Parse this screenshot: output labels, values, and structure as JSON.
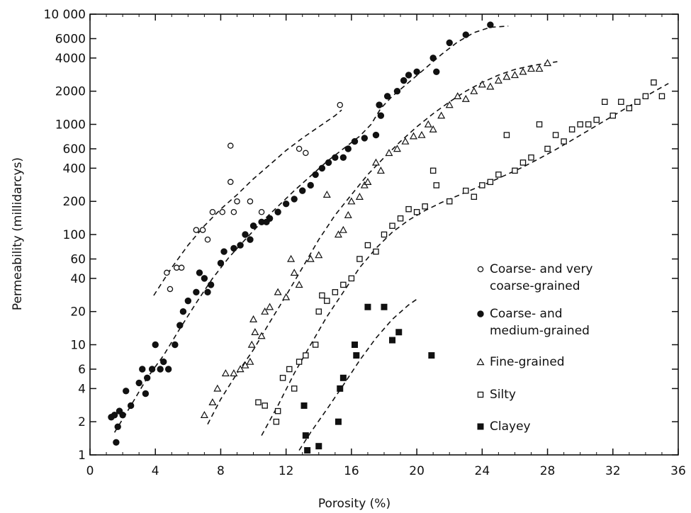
{
  "chart_data": {
    "type": "scatter",
    "title": "",
    "xlabel": "Porosity (%)",
    "ylabel": "Permeability (millidarcys)",
    "xlim": [
      0,
      36
    ],
    "ylim": [
      1,
      10000
    ],
    "y_scale": "log",
    "grid": false,
    "legend_position": "right",
    "x_ticks": [
      0,
      4,
      8,
      12,
      16,
      20,
      24,
      28,
      32,
      36
    ],
    "x_tick_labels": [
      "0",
      "4",
      "8",
      "12",
      "16",
      "20",
      "24",
      "28",
      "32",
      "36"
    ],
    "y_ticks": [
      1,
      2,
      4,
      6,
      10,
      20,
      40,
      60,
      100,
      200,
      400,
      600,
      1000,
      2000,
      4000,
      6000,
      10000
    ],
    "y_tick_labels": [
      "1",
      "2",
      "4",
      "6",
      "10",
      "20",
      "40",
      "60",
      "100",
      "200",
      "400",
      "600",
      "1000",
      "2000",
      "4000",
      "6000",
      "10 000"
    ],
    "series": [
      {
        "name": "Coarse- and very coarse-grained",
        "name_lines": [
          "Coarse- and very",
          "coarse-grained"
        ],
        "marker": "open-circle",
        "points": [
          [
            4.7,
            45
          ],
          [
            4.9,
            32
          ],
          [
            5.3,
            50
          ],
          [
            5.6,
            50
          ],
          [
            6.5,
            110
          ],
          [
            6.9,
            110
          ],
          [
            7.2,
            90
          ],
          [
            7.5,
            160
          ],
          [
            8.1,
            160
          ],
          [
            8.6,
            640
          ],
          [
            8.6,
            300
          ],
          [
            8.8,
            160
          ],
          [
            9.0,
            200
          ],
          [
            9.8,
            200
          ],
          [
            10.5,
            160
          ],
          [
            12.8,
            600
          ],
          [
            13.2,
            550
          ],
          [
            15.3,
            1500
          ]
        ],
        "fit_line": [
          [
            3.9,
            28
          ],
          [
            5,
            50
          ],
          [
            6,
            80
          ],
          [
            7,
            120
          ],
          [
            8,
            170
          ],
          [
            9,
            230
          ],
          [
            10,
            320
          ],
          [
            11,
            430
          ],
          [
            12,
            580
          ],
          [
            13,
            750
          ],
          [
            14,
            950
          ],
          [
            15,
            1200
          ],
          [
            15.4,
            1350
          ]
        ]
      },
      {
        "name": "Coarse- and medium-grained",
        "name_lines": [
          "Coarse- and",
          "medium-grained"
        ],
        "marker": "filled-circle",
        "points": [
          [
            1.3,
            2.2
          ],
          [
            1.5,
            2.3
          ],
          [
            1.6,
            1.3
          ],
          [
            1.7,
            1.8
          ],
          [
            1.8,
            2.5
          ],
          [
            2.0,
            2.3
          ],
          [
            2.2,
            3.8
          ],
          [
            2.5,
            2.8
          ],
          [
            3.0,
            4.5
          ],
          [
            3.2,
            6
          ],
          [
            3.4,
            3.6
          ],
          [
            3.5,
            5
          ],
          [
            3.8,
            6
          ],
          [
            4.0,
            10
          ],
          [
            4.3,
            6
          ],
          [
            4.5,
            7
          ],
          [
            4.8,
            6
          ],
          [
            5.2,
            10
          ],
          [
            5.5,
            15
          ],
          [
            5.7,
            20
          ],
          [
            6.0,
            25
          ],
          [
            6.5,
            30
          ],
          [
            6.7,
            45
          ],
          [
            7.0,
            40
          ],
          [
            7.2,
            30
          ],
          [
            7.4,
            35
          ],
          [
            8.0,
            55
          ],
          [
            8.2,
            70
          ],
          [
            8.8,
            75
          ],
          [
            9.2,
            80
          ],
          [
            9.5,
            100
          ],
          [
            9.8,
            90
          ],
          [
            10.0,
            120
          ],
          [
            10.5,
            130
          ],
          [
            10.8,
            130
          ],
          [
            11.0,
            140
          ],
          [
            11.5,
            160
          ],
          [
            12.0,
            190
          ],
          [
            12.5,
            210
          ],
          [
            13.0,
            250
          ],
          [
            13.5,
            280
          ],
          [
            13.8,
            350
          ],
          [
            14.2,
            400
          ],
          [
            14.6,
            450
          ],
          [
            15.0,
            500
          ],
          [
            15.5,
            500
          ],
          [
            15.8,
            600
          ],
          [
            16.2,
            700
          ],
          [
            16.8,
            750
          ],
          [
            17.5,
            800
          ],
          [
            17.7,
            1500
          ],
          [
            17.8,
            1200
          ],
          [
            18.2,
            1800
          ],
          [
            18.8,
            2000
          ],
          [
            19.2,
            2500
          ],
          [
            19.5,
            2800
          ],
          [
            20.0,
            3000
          ],
          [
            21.0,
            4000
          ],
          [
            21.2,
            3000
          ],
          [
            22.0,
            5500
          ],
          [
            23.0,
            6500
          ],
          [
            24.5,
            8000
          ]
        ],
        "fit_line": [
          [
            1.5,
            1.6
          ],
          [
            2.5,
            2.8
          ],
          [
            3.5,
            5
          ],
          [
            4.5,
            8
          ],
          [
            5.5,
            14
          ],
          [
            6.5,
            24
          ],
          [
            7.5,
            40
          ],
          [
            8.5,
            62
          ],
          [
            9.5,
            90
          ],
          [
            10.5,
            130
          ],
          [
            11.5,
            180
          ],
          [
            12.5,
            250
          ],
          [
            13.5,
            340
          ],
          [
            14.5,
            460
          ],
          [
            15.5,
            600
          ],
          [
            16.5,
            780
          ],
          [
            17.2,
            1000
          ],
          [
            17.8,
            1400
          ],
          [
            18.5,
            1800
          ],
          [
            19.5,
            2400
          ],
          [
            20.5,
            3200
          ],
          [
            21.5,
            4300
          ],
          [
            22.5,
            5600
          ],
          [
            23.5,
            6800
          ],
          [
            24.5,
            7600
          ],
          [
            25.6,
            7800
          ]
        ]
      },
      {
        "name": "Fine-grained",
        "marker": "open-triangle",
        "points": [
          [
            7.0,
            2.3
          ],
          [
            7.5,
            3
          ],
          [
            7.8,
            4
          ],
          [
            8.3,
            5.5
          ],
          [
            8.8,
            5.5
          ],
          [
            9.2,
            6
          ],
          [
            9.5,
            6.5
          ],
          [
            9.8,
            7
          ],
          [
            9.9,
            10
          ],
          [
            10.0,
            17
          ],
          [
            10.1,
            13
          ],
          [
            10.5,
            12
          ],
          [
            10.7,
            20
          ],
          [
            11.0,
            22
          ],
          [
            11.5,
            30
          ],
          [
            12.0,
            27
          ],
          [
            12.3,
            60
          ],
          [
            12.5,
            45
          ],
          [
            12.8,
            35
          ],
          [
            13.5,
            60
          ],
          [
            14.0,
            65
          ],
          [
            14.5,
            230
          ],
          [
            15.2,
            100
          ],
          [
            15.5,
            110
          ],
          [
            15.8,
            150
          ],
          [
            16.0,
            200
          ],
          [
            16.5,
            220
          ],
          [
            16.8,
            280
          ],
          [
            17.0,
            300
          ],
          [
            17.5,
            450
          ],
          [
            17.8,
            380
          ],
          [
            18.3,
            550
          ],
          [
            18.8,
            600
          ],
          [
            19.3,
            700
          ],
          [
            19.8,
            780
          ],
          [
            20.3,
            800
          ],
          [
            20.7,
            1000
          ],
          [
            21.0,
            900
          ],
          [
            21.5,
            1200
          ],
          [
            22.0,
            1500
          ],
          [
            22.5,
            1800
          ],
          [
            23.0,
            1700
          ],
          [
            23.5,
            2000
          ],
          [
            24.0,
            2300
          ],
          [
            24.5,
            2200
          ],
          [
            25.0,
            2500
          ],
          [
            25.5,
            2700
          ],
          [
            26.0,
            2800
          ],
          [
            26.5,
            3000
          ],
          [
            27.0,
            3200
          ],
          [
            27.5,
            3200
          ],
          [
            28.0,
            3600
          ]
        ],
        "fit_line": [
          [
            7.2,
            1.9
          ],
          [
            8,
            3.2
          ],
          [
            9,
            5.5
          ],
          [
            10,
            9
          ],
          [
            11,
            16
          ],
          [
            12,
            28
          ],
          [
            13,
            50
          ],
          [
            14,
            90
          ],
          [
            15,
            150
          ],
          [
            16,
            230
          ],
          [
            17,
            350
          ],
          [
            18,
            500
          ],
          [
            19,
            700
          ],
          [
            20,
            950
          ],
          [
            21,
            1250
          ],
          [
            22,
            1600
          ],
          [
            23,
            2000
          ],
          [
            24,
            2400
          ],
          [
            25,
            2800
          ],
          [
            26,
            3150
          ],
          [
            27,
            3400
          ],
          [
            28,
            3600
          ],
          [
            28.6,
            3700
          ]
        ]
      },
      {
        "name": "Silty",
        "marker": "open-square",
        "points": [
          [
            10.3,
            3
          ],
          [
            10.7,
            2.8
          ],
          [
            11.4,
            2
          ],
          [
            11.5,
            2.5
          ],
          [
            11.8,
            5
          ],
          [
            12.2,
            6
          ],
          [
            12.5,
            4
          ],
          [
            12.8,
            7
          ],
          [
            13.2,
            8
          ],
          [
            13.8,
            10
          ],
          [
            14.0,
            20
          ],
          [
            14.2,
            28
          ],
          [
            14.5,
            25
          ],
          [
            15.0,
            30
          ],
          [
            15.5,
            35
          ],
          [
            16.0,
            40
          ],
          [
            16.5,
            60
          ],
          [
            17.0,
            80
          ],
          [
            17.5,
            70
          ],
          [
            18.0,
            100
          ],
          [
            18.5,
            120
          ],
          [
            19.0,
            140
          ],
          [
            19.5,
            170
          ],
          [
            20.0,
            160
          ],
          [
            20.5,
            180
          ],
          [
            21.0,
            380
          ],
          [
            21.2,
            280
          ],
          [
            22.0,
            200
          ],
          [
            23.0,
            250
          ],
          [
            23.5,
            220
          ],
          [
            24.0,
            280
          ],
          [
            24.5,
            300
          ],
          [
            25.0,
            350
          ],
          [
            25.5,
            800
          ],
          [
            26.0,
            380
          ],
          [
            26.5,
            450
          ],
          [
            27.0,
            500
          ],
          [
            27.5,
            1000
          ],
          [
            28.0,
            600
          ],
          [
            28.5,
            800
          ],
          [
            29.0,
            700
          ],
          [
            29.5,
            900
          ],
          [
            30.0,
            1000
          ],
          [
            30.5,
            1000
          ],
          [
            31.0,
            1100
          ],
          [
            31.5,
            1600
          ],
          [
            32.0,
            1200
          ],
          [
            32.5,
            1600
          ],
          [
            33.0,
            1400
          ],
          [
            33.5,
            1600
          ],
          [
            34.0,
            1800
          ],
          [
            34.5,
            2400
          ],
          [
            35.0,
            1800
          ]
        ],
        "fit_line": [
          [
            10.5,
            1.5
          ],
          [
            11.5,
            2.8
          ],
          [
            12.5,
            5.5
          ],
          [
            13.5,
            10
          ],
          [
            14.5,
            18
          ],
          [
            15.5,
            30
          ],
          [
            16.5,
            50
          ],
          [
            17.5,
            75
          ],
          [
            18.5,
            105
          ],
          [
            19.5,
            135
          ],
          [
            20.5,
            165
          ],
          [
            21.5,
            195
          ],
          [
            22.5,
            225
          ],
          [
            23.5,
            260
          ],
          [
            24.5,
            300
          ],
          [
            25.5,
            350
          ],
          [
            26.5,
            410
          ],
          [
            27.5,
            490
          ],
          [
            28.5,
            590
          ],
          [
            29.5,
            720
          ],
          [
            30.5,
            880
          ],
          [
            31.5,
            1080
          ],
          [
            32.5,
            1320
          ],
          [
            33.5,
            1620
          ],
          [
            34.5,
            1980
          ],
          [
            35.4,
            2350
          ]
        ]
      },
      {
        "name": "Clayey",
        "marker": "filled-square",
        "points": [
          [
            13.1,
            2.8
          ],
          [
            13.2,
            1.5
          ],
          [
            13.3,
            1.1
          ],
          [
            14.0,
            1.2
          ],
          [
            15.2,
            2
          ],
          [
            15.3,
            4
          ],
          [
            15.5,
            5
          ],
          [
            16.2,
            10
          ],
          [
            16.3,
            8
          ],
          [
            17.0,
            22
          ],
          [
            18.0,
            22
          ],
          [
            18.5,
            11
          ],
          [
            18.9,
            13
          ],
          [
            20.9,
            8
          ]
        ],
        "fit_line": [
          [
            12.8,
            1.1
          ],
          [
            13.5,
            1.6
          ],
          [
            14.5,
            2.6
          ],
          [
            15.5,
            4.3
          ],
          [
            16.5,
            7.2
          ],
          [
            17.5,
            11.5
          ],
          [
            18.5,
            17
          ],
          [
            19.5,
            23
          ],
          [
            20.1,
            26.5
          ]
        ]
      }
    ]
  }
}
